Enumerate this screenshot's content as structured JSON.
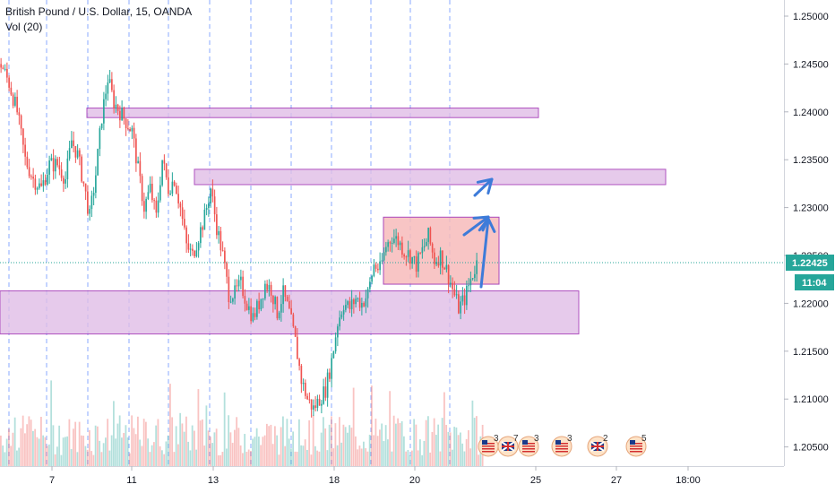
{
  "legend": {
    "title": "British Pound / U.S. Dollar, 15, OANDA",
    "indicator": "Vol (20)"
  },
  "price_axis": {
    "labels": [
      "1.25000",
      "1.24500",
      "1.24000",
      "1.23500",
      "1.23000",
      "1.22500",
      "1.22000",
      "1.21500",
      "1.21000",
      "1.20500"
    ],
    "current_price": "1.22425",
    "countdown": "11:04"
  },
  "time_axis": {
    "labels": [
      "7",
      "11",
      "13",
      "18",
      "20",
      "25",
      "27",
      "18:00"
    ]
  },
  "colors": {
    "up": "#26a69a",
    "down": "#ef5350",
    "zone_fill": "#e1bee7",
    "zone_stroke": "#9c27b0",
    "box_fill": "#f7bcbc",
    "box_stroke": "#9c27b0",
    "arrow": "#3d7bd9",
    "price_label": "#26a69a",
    "session_line": "#2962ff"
  },
  "events": [
    {
      "icon": "us-flag-icon",
      "count": "3"
    },
    {
      "icon": "uk-flag-icon",
      "count": "7"
    },
    {
      "icon": "us-flag-icon",
      "count": "3"
    },
    {
      "icon": "us-flag-icon",
      "count": "3"
    },
    {
      "icon": "uk-flag-icon",
      "count": "2"
    },
    {
      "icon": "us-flag-icon",
      "count": "5"
    }
  ],
  "chart_data": {
    "type": "candlestick",
    "symbol": "British Pound / U.S. Dollar, 15, OANDA",
    "ylim": [
      1.2038,
      1.2528
    ],
    "last_price": 1.22425,
    "zones": [
      {
        "kind": "resistance",
        "low": 1.2394,
        "high": 1.2404
      },
      {
        "kind": "resistance",
        "low": 1.2324,
        "high": 1.234
      },
      {
        "kind": "support",
        "low": 1.2168,
        "high": 1.2213
      },
      {
        "kind": "range",
        "low": 1.222,
        "high": 1.229
      }
    ],
    "price_path": [
      [
        0,
        1.245
      ],
      [
        4,
        1.243
      ],
      [
        8,
        1.24
      ],
      [
        12,
        1.235
      ],
      [
        16,
        1.233
      ],
      [
        20,
        1.232
      ],
      [
        24,
        1.2345
      ],
      [
        28,
        1.2345
      ],
      [
        32,
        1.233
      ],
      [
        35,
        1.237
      ],
      [
        38,
        1.2355
      ],
      [
        41,
        1.2325
      ],
      [
        44,
        1.229
      ],
      [
        47,
        1.2335
      ],
      [
        50,
        1.2395
      ],
      [
        53,
        1.2435
      ],
      [
        56,
        1.241
      ],
      [
        59,
        1.24
      ],
      [
        62,
        1.239
      ],
      [
        65,
        1.238
      ],
      [
        68,
        1.234
      ],
      [
        71,
        1.23
      ],
      [
        74,
        1.232
      ],
      [
        77,
        1.229
      ],
      [
        80,
        1.235
      ],
      [
        83,
        1.232
      ],
      [
        86,
        1.233
      ],
      [
        89,
        1.23
      ],
      [
        92,
        1.226
      ],
      [
        95,
        1.225
      ],
      [
        98,
        1.227
      ],
      [
        101,
        1.229
      ],
      [
        104,
        1.232
      ],
      [
        107,
        1.228
      ],
      [
        110,
        1.225
      ],
      [
        113,
        1.221
      ],
      [
        116,
        1.221
      ],
      [
        119,
        1.222
      ],
      [
        122,
        1.22
      ],
      [
        125,
        1.2185
      ],
      [
        128,
        1.22
      ],
      [
        131,
        1.222
      ],
      [
        134,
        1.2215
      ],
      [
        137,
        1.219
      ],
      [
        140,
        1.221
      ],
      [
        143,
        1.219
      ],
      [
        146,
        1.216
      ],
      [
        149,
        1.212
      ],
      [
        152,
        1.21
      ],
      [
        155,
        1.209
      ],
      [
        158,
        1.21
      ],
      [
        161,
        1.211
      ],
      [
        164,
        1.214
      ],
      [
        167,
        1.218
      ],
      [
        170,
        1.22
      ],
      [
        173,
        1.2195
      ],
      [
        176,
        1.2205
      ],
      [
        179,
        1.22
      ],
      [
        182,
        1.221
      ],
      [
        185,
        1.224
      ],
      [
        188,
        1.2235
      ],
      [
        191,
        1.226
      ],
      [
        194,
        1.227
      ],
      [
        197,
        1.2265
      ],
      [
        200,
        1.2255
      ],
      [
        203,
        1.225
      ],
      [
        206,
        1.224
      ],
      [
        209,
        1.2255
      ],
      [
        212,
        1.227
      ],
      [
        215,
        1.2245
      ],
      [
        218,
        1.225
      ],
      [
        221,
        1.2235
      ],
      [
        224,
        1.2215
      ],
      [
        227,
        1.2195
      ],
      [
        230,
        1.2205
      ],
      [
        233,
        1.2225
      ],
      [
        236,
        1.2242
      ]
    ],
    "arrows": [
      {
        "from": {
          "bar": 220,
          "price": 1.227
        },
        "to": {
          "bar": 234,
          "price": 1.233
        }
      },
      {
        "from": {
          "bar": 229,
          "price": 1.222
        },
        "to": {
          "bar": 230,
          "price": 1.229
        }
      }
    ]
  }
}
